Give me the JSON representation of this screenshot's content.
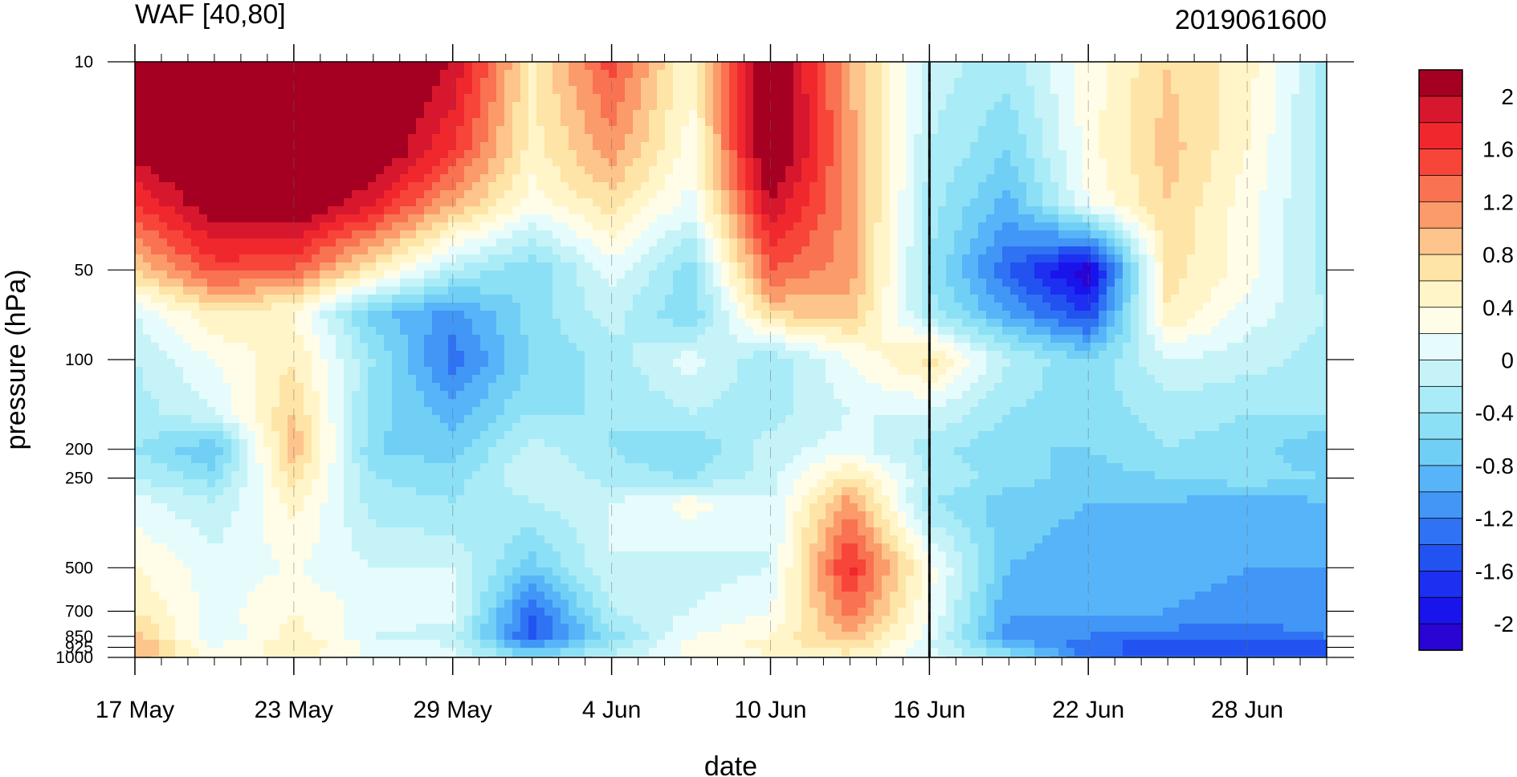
{
  "chart_data": {
    "type": "heatmap",
    "title": "WAF [40,80]",
    "subtitle": "2019061600",
    "xlabel": "date",
    "ylabel": "pressure (hPa)",
    "x_tick_labels": [
      "17 May",
      "23 May",
      "29 May",
      "4 Jun",
      "10 Jun",
      "16 Jun",
      "22 Jun",
      "28 Jun"
    ],
    "x_tick_days": [
      0,
      6,
      12,
      18,
      24,
      30,
      36,
      42
    ],
    "x_range_days": [
      0,
      45
    ],
    "y_scale": "log",
    "y_ticks": [
      10,
      50,
      100,
      200,
      250,
      500,
      700,
      850,
      925,
      1000
    ],
    "y_tick_labels": [
      "10",
      "50",
      "100",
      "200",
      "250",
      "500",
      "700",
      "850",
      "925",
      "1000"
    ],
    "y_range": [
      1000,
      10
    ],
    "reference_line_date": "16 Jun",
    "colorbar": {
      "labels": [
        "2",
        "1.6",
        "1.2",
        "0.8",
        "0.4",
        "0",
        "-0.4",
        "-0.8",
        "-1.2",
        "-1.6",
        "-2"
      ],
      "levels": [
        2.2,
        2.0,
        1.8,
        1.6,
        1.4,
        1.2,
        1.0,
        0.8,
        0.6,
        0.4,
        0.2,
        0.0,
        -0.2,
        -0.4,
        -0.6,
        -0.8,
        -1.0,
        -1.2,
        -1.4,
        -1.6,
        -1.8,
        -2.0,
        -2.2
      ],
      "colors": [
        "#a50021",
        "#d7172e",
        "#f0282e",
        "#f7453a",
        "#f97252",
        "#fb9b6a",
        "#fdc48c",
        "#fee4a6",
        "#fff5c8",
        "#fffde8",
        "#e6fbfc",
        "#c6f3f8",
        "#a9ebf6",
        "#8ce0f5",
        "#71cff6",
        "#58b4f8",
        "#4296f6",
        "#2f72f3",
        "#2253f0",
        "#1d2ff0",
        "#1a14ec",
        "#2a04d2"
      ]
    },
    "grid_days": [
      0,
      3,
      6,
      9,
      12,
      15,
      18,
      21,
      24,
      27,
      30,
      33,
      36,
      39,
      42,
      45
    ],
    "grid_levels": [
      10,
      20,
      30,
      50,
      70,
      100,
      150,
      200,
      250,
      300,
      500,
      700,
      850,
      925,
      1000
    ],
    "values": [
      [
        2.4,
        2.4,
        2.4,
        2.4,
        2.0,
        0.6,
        1.5,
        0.4,
        2.4,
        1.0,
        -0.1,
        -0.3,
        0.3,
        0.8,
        0.5,
        -0.3
      ],
      [
        2.1,
        2.4,
        2.4,
        2.3,
        1.6,
        0.5,
        1.1,
        0.3,
        2.4,
        1.1,
        -0.2,
        -0.6,
        0.3,
        0.9,
        0.4,
        -0.3
      ],
      [
        1.6,
        2.2,
        2.3,
        1.8,
        1.0,
        0.3,
        0.7,
        0.1,
        2.0,
        1.1,
        -0.3,
        -0.9,
        0.2,
        0.8,
        0.3,
        -0.3
      ],
      [
        0.8,
        1.5,
        1.4,
        0.6,
        -0.2,
        -0.6,
        0.1,
        -0.5,
        1.4,
        1.1,
        -0.4,
        -1.4,
        -2.2,
        0.7,
        0.3,
        -0.3
      ],
      [
        0.0,
        0.6,
        0.4,
        -0.7,
        -1.1,
        -0.5,
        -0.1,
        -0.6,
        0.8,
        0.9,
        -0.3,
        -1.0,
        -1.6,
        0.6,
        0.1,
        -0.2
      ],
      [
        -0.2,
        0.2,
        0.6,
        -0.4,
        -1.3,
        -0.6,
        -0.3,
        0.1,
        -0.4,
        0.2,
        0.7,
        -0.2,
        -0.6,
        0.0,
        -0.1,
        -0.3
      ],
      [
        -0.3,
        0.0,
        0.8,
        -0.5,
        -0.9,
        -0.4,
        -0.4,
        -0.2,
        -0.3,
        0.0,
        0.0,
        -0.4,
        -0.5,
        -0.3,
        -0.4,
        -0.4
      ],
      [
        -0.4,
        -0.8,
        1.0,
        -0.6,
        -0.7,
        -0.1,
        -0.4,
        -0.6,
        -0.1,
        0.1,
        -0.3,
        -0.6,
        -0.6,
        -0.4,
        -0.5,
        -0.8
      ],
      [
        -0.2,
        -0.5,
        0.7,
        -0.4,
        -0.5,
        0.0,
        -0.3,
        -0.4,
        -0.1,
        0.7,
        -0.2,
        -0.5,
        -0.7,
        -0.6,
        -0.5,
        -0.6
      ],
      [
        0.1,
        -0.2,
        0.5,
        -0.3,
        -0.4,
        -0.2,
        0.0,
        0.3,
        0.0,
        1.1,
        -0.4,
        -0.7,
        -0.8,
        -0.8,
        -0.9,
        -0.8
      ],
      [
        0.4,
        0.1,
        0.2,
        0.0,
        0.0,
        -0.7,
        0.0,
        -0.1,
        0.0,
        1.7,
        0.3,
        -0.8,
        -0.9,
        -0.9,
        -1.0,
        -1.0
      ],
      [
        0.6,
        0.1,
        0.4,
        0.1,
        0.1,
        -1.4,
        -0.2,
        0.0,
        0.2,
        1.3,
        0.2,
        -1.0,
        -0.9,
        -1.0,
        -1.1,
        -1.1
      ],
      [
        0.9,
        0.0,
        0.5,
        0.0,
        -0.1,
        -1.5,
        -0.5,
        0.2,
        0.4,
        1.0,
        0.1,
        -1.1,
        -1.2,
        -1.3,
        -1.3,
        -1.2
      ],
      [
        1.1,
        0.2,
        0.6,
        0.2,
        0.0,
        -1.0,
        -0.3,
        0.3,
        0.5,
        0.7,
        0.0,
        -0.7,
        -1.4,
        -1.6,
        -1.6,
        -1.5
      ],
      [
        0.9,
        0.3,
        0.4,
        0.1,
        0.0,
        -0.5,
        -0.1,
        0.2,
        0.3,
        0.5,
        0.1,
        -0.4,
        -1.2,
        -1.4,
        -1.4,
        -1.3
      ]
    ]
  }
}
